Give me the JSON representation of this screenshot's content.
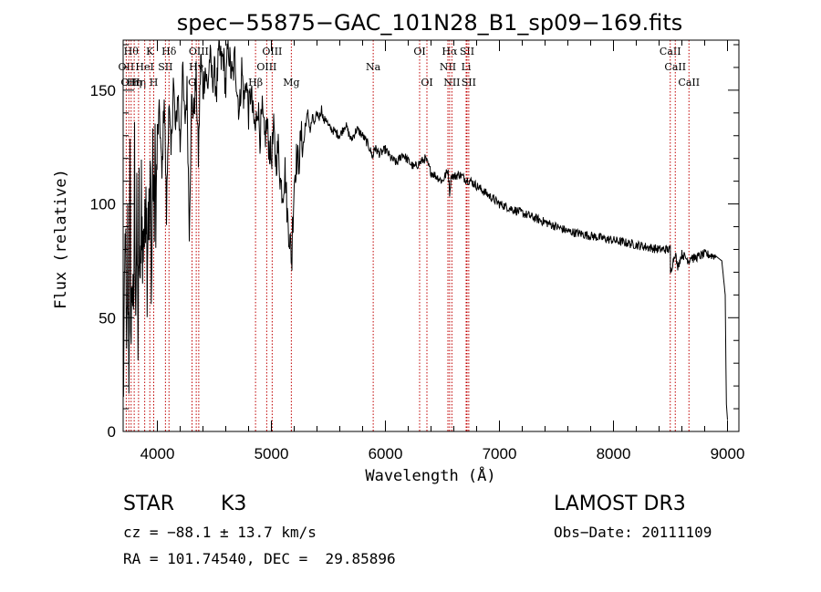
{
  "chart_data": {
    "type": "line",
    "title": "spec−55875−GAC_101N28_B1_sp09−169.fits",
    "xlabel": "Wavelength (Å)",
    "ylabel": "Flux (relative)",
    "xlim": [
      3700,
      9100
    ],
    "ylim": [
      0,
      172
    ],
    "x_ticks": [
      4000,
      5000,
      6000,
      7000,
      8000,
      9000
    ],
    "y_ticks": [
      0,
      50,
      100,
      150
    ],
    "line_color": "#000000",
    "marker_color": "#c00000",
    "series": [
      {
        "name": "flux",
        "x": [
          3700,
          3710,
          3720,
          3730,
          3740,
          3750,
          3760,
          3770,
          3780,
          3790,
          3800,
          3810,
          3820,
          3830,
          3840,
          3850,
          3860,
          3870,
          3880,
          3890,
          3900,
          3910,
          3920,
          3930,
          3940,
          3950,
          3960,
          3970,
          3980,
          3990,
          4000,
          4020,
          4040,
          4060,
          4080,
          4100,
          4120,
          4140,
          4160,
          4180,
          4200,
          4220,
          4240,
          4260,
          4280,
          4300,
          4320,
          4340,
          4360,
          4380,
          4400,
          4420,
          4440,
          4460,
          4480,
          4500,
          4520,
          4540,
          4560,
          4580,
          4600,
          4620,
          4640,
          4660,
          4680,
          4700,
          4720,
          4740,
          4760,
          4780,
          4800,
          4820,
          4840,
          4860,
          4880,
          4900,
          4920,
          4940,
          4960,
          4980,
          5000,
          5020,
          5040,
          5060,
          5080,
          5100,
          5120,
          5140,
          5160,
          5170,
          5180,
          5185,
          5190,
          5200,
          5220,
          5240,
          5260,
          5280,
          5300,
          5320,
          5340,
          5360,
          5380,
          5400,
          5420,
          5440,
          5460,
          5480,
          5500,
          5550,
          5600,
          5650,
          5700,
          5750,
          5800,
          5850,
          5893,
          5900,
          5950,
          6000,
          6050,
          6100,
          6150,
          6200,
          6250,
          6300,
          6350,
          6400,
          6450,
          6500,
          6550,
          6563,
          6580,
          6600,
          6650,
          6700,
          6750,
          6800,
          6850,
          6900,
          6950,
          7000,
          7100,
          7200,
          7300,
          7400,
          7500,
          7600,
          7700,
          7800,
          7900,
          8000,
          8100,
          8200,
          8300,
          8400,
          8498,
          8500,
          8542,
          8560,
          8600,
          8662,
          8680,
          8700,
          8800,
          8900,
          8950,
          8980,
          8990,
          9000
        ],
        "y": [
          15,
          45,
          95,
          20,
          85,
          30,
          110,
          40,
          75,
          35,
          120,
          60,
          90,
          45,
          100,
          50,
          115,
          70,
          95,
          80,
          120,
          75,
          105,
          85,
          110,
          65,
          125,
          90,
          115,
          100,
          130,
          140,
          110,
          150,
          95,
          145,
          120,
          155,
          130,
          150,
          125,
          160,
          135,
          150,
          90,
          145,
          140,
          155,
          120,
          165,
          150,
          160,
          150,
          165,
          155,
          158,
          150,
          168,
          162,
          165,
          150,
          172,
          160,
          155,
          165,
          150,
          140,
          160,
          145,
          155,
          140,
          150,
          138,
          132,
          145,
          130,
          140,
          128,
          135,
          125,
          120,
          132,
          118,
          125,
          110,
          105,
          115,
          95,
          85,
          80,
          75,
          90,
          95,
          110,
          120,
          118,
          130,
          125,
          135,
          140,
          132,
          138,
          135,
          140,
          138,
          142,
          136,
          138,
          134,
          132,
          130,
          135,
          128,
          133,
          130,
          126,
          120,
          125,
          122,
          124,
          120,
          118,
          122,
          119,
          116,
          118,
          120,
          114,
          112,
          110,
          115,
          105,
          113,
          112,
          113,
          111,
          110,
          108,
          106,
          104,
          102,
          100,
          98,
          96,
          94,
          92,
          90,
          88,
          87,
          86,
          85,
          84,
          83,
          82,
          81,
          80,
          80,
          70,
          79,
          72,
          78,
          75,
          77,
          76,
          78,
          77,
          75,
          60,
          12,
          5
        ]
      }
    ],
    "line_markers": [
      {
        "wl": 3727,
        "label": "OII",
        "row": 2
      },
      {
        "wl": 3750,
        "label": "OII",
        "row": 3
      },
      {
        "wl": 3770,
        "label": "Hθ",
        "row": 1
      },
      {
        "wl": 3797,
        "label": "Hη",
        "row": 3
      },
      {
        "wl": 3835,
        "label": "Hη",
        "row": 3
      },
      {
        "wl": 3889,
        "label": "HeI",
        "row": 2
      },
      {
        "wl": 3934,
        "label": "K",
        "row": 1
      },
      {
        "wl": 3968,
        "label": "H",
        "row": 3
      },
      {
        "wl": 4071,
        "label": "SII",
        "row": 2
      },
      {
        "wl": 4102,
        "label": "Hδ",
        "row": 1
      },
      {
        "wl": 4304,
        "label": "G",
        "row": 3
      },
      {
        "wl": 4341,
        "label": "Hγ",
        "row": 2
      },
      {
        "wl": 4363,
        "label": "OIII",
        "row": 1
      },
      {
        "wl": 4861,
        "label": "Hβ",
        "row": 3
      },
      {
        "wl": 4959,
        "label": "OIII",
        "row": 2
      },
      {
        "wl": 5007,
        "label": "OIII",
        "row": 1
      },
      {
        "wl": 5175,
        "label": "Mg",
        "row": 3
      },
      {
        "wl": 5893,
        "label": "Na",
        "row": 2
      },
      {
        "wl": 6300,
        "label": "OI",
        "row": 1
      },
      {
        "wl": 6364,
        "label": "OI",
        "row": 3
      },
      {
        "wl": 6548,
        "label": "NII",
        "row": 2
      },
      {
        "wl": 6563,
        "label": "Hα",
        "row": 1
      },
      {
        "wl": 6583,
        "label": "NII",
        "row": 3
      },
      {
        "wl": 6708,
        "label": "Li",
        "row": 2
      },
      {
        "wl": 6716,
        "label": "SII",
        "row": 1
      },
      {
        "wl": 6731,
        "label": "SII",
        "row": 3
      },
      {
        "wl": 8498,
        "label": "CaII",
        "row": 1
      },
      {
        "wl": 8542,
        "label": "CaII",
        "row": 2
      },
      {
        "wl": 8662,
        "label": "CaII",
        "row": 3
      }
    ]
  },
  "info": {
    "class_label": "STAR",
    "subclass": "K3",
    "survey": "LAMOST DR3",
    "cz": "cz = −88.1 ± 13.7 km/s",
    "obs_date": "Obs−Date: 20111109",
    "radec": "RA = 101.74540, DEC =  29.85896"
  }
}
